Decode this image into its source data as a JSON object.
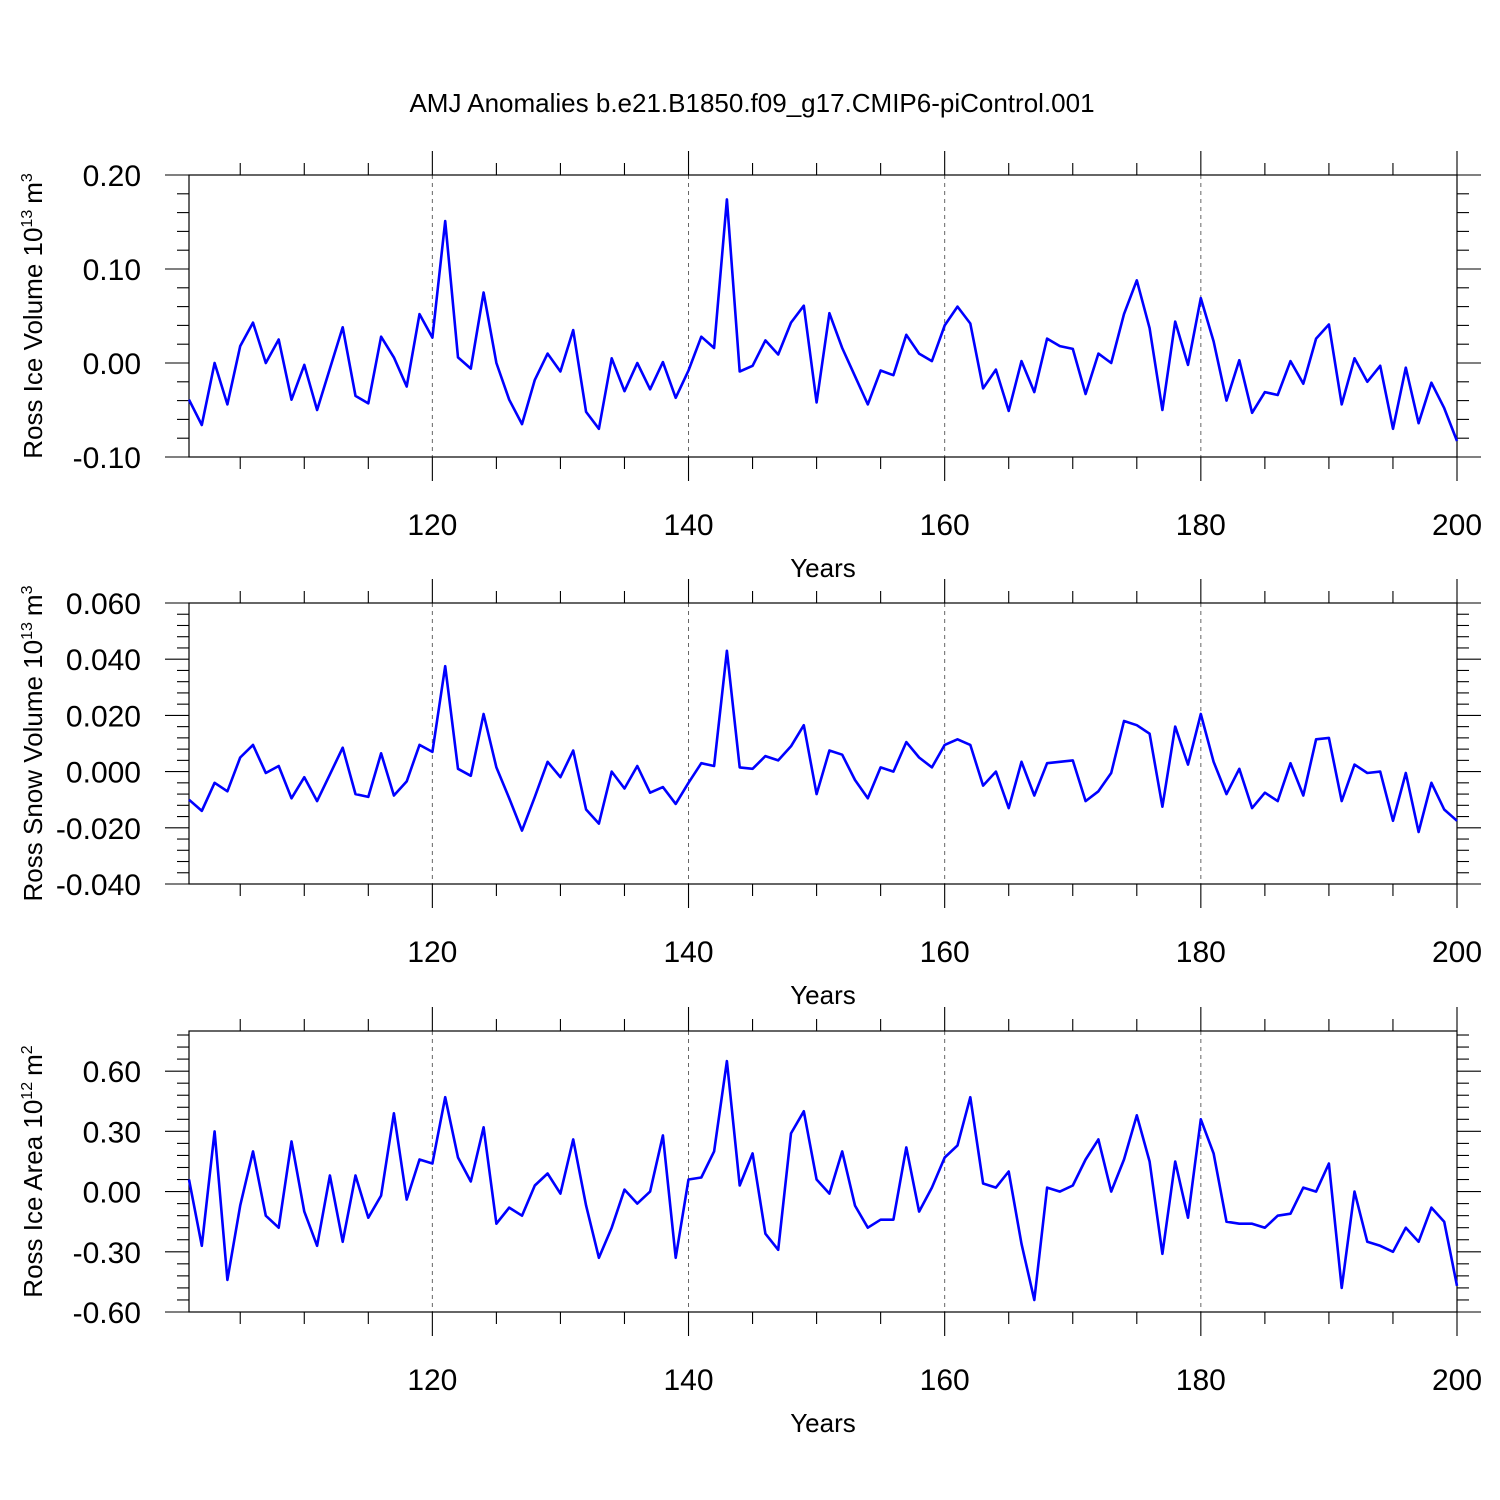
{
  "colors": {
    "series": "#0000ff"
  },
  "chart_data": [
    {
      "type": "line",
      "title": "AMJ Anomalies b.e21.B1850.f09_g17.CMIP6-piControl.001",
      "xlabel": "Years",
      "ylabel_main": "Ross Ice Volume 10",
      "ylabel_exp": "13",
      "ylabel_unit": "m",
      "ylabel_unit_exp": "3",
      "xlim": [
        101,
        200
      ],
      "ylim": [
        -0.1,
        0.2
      ],
      "xticks": [
        120,
        140,
        160,
        180,
        200
      ],
      "xtick_labels": [
        "120",
        "140",
        "160",
        "180",
        "200"
      ],
      "yticks": [
        -0.1,
        0.0,
        0.1,
        0.2
      ],
      "ytick_labels": [
        "-0.10",
        "0.00",
        "0.10",
        "0.20"
      ],
      "grid_x": [
        120,
        140,
        160,
        180
      ],
      "x_start": 101,
      "values": [
        -0.039,
        -0.066,
        0.0,
        -0.044,
        0.018,
        0.043,
        0.0,
        0.025,
        -0.039,
        -0.002,
        -0.05,
        -0.006,
        0.038,
        -0.035,
        -0.043,
        0.028,
        0.006,
        -0.025,
        0.052,
        0.027,
        0.151,
        0.006,
        -0.006,
        0.075,
        0.0,
        -0.039,
        -0.065,
        -0.018,
        0.01,
        -0.009,
        0.035,
        -0.052,
        -0.07,
        0.005,
        -0.03,
        0.0,
        -0.028,
        0.001,
        -0.037,
        -0.008,
        0.028,
        0.016,
        0.174,
        -0.009,
        -0.003,
        0.024,
        0.009,
        0.043,
        0.061,
        -0.042,
        0.053,
        0.016,
        -0.014,
        -0.044,
        -0.008,
        -0.013,
        0.03,
        0.01,
        0.002,
        0.04,
        0.06,
        0.042,
        -0.027,
        -0.007,
        -0.051,
        0.002,
        -0.031,
        0.026,
        0.018,
        0.015,
        -0.033,
        0.01,
        0.0,
        0.052,
        0.088,
        0.037,
        -0.05,
        0.044,
        -0.002,
        0.069,
        0.023,
        -0.04,
        0.003,
        -0.053,
        -0.031,
        -0.034,
        0.002,
        -0.022,
        0.026,
        0.041,
        -0.044,
        0.005,
        -0.02,
        -0.003,
        -0.07,
        -0.005,
        -0.064,
        -0.021,
        -0.048,
        -0.083
      ]
    },
    {
      "type": "line",
      "title": "",
      "xlabel": "Years",
      "ylabel_main": "Ross Snow Volume 10",
      "ylabel_exp": "13",
      "ylabel_unit": "m",
      "ylabel_unit_exp": "3",
      "xlim": [
        101,
        200
      ],
      "ylim": [
        -0.04,
        0.06
      ],
      "xticks": [
        120,
        140,
        160,
        180,
        200
      ],
      "xtick_labels": [
        "120",
        "140",
        "160",
        "180",
        "200"
      ],
      "yticks": [
        -0.04,
        -0.02,
        0.0,
        0.02,
        0.04,
        0.06
      ],
      "ytick_labels": [
        "-0.040",
        "-0.020",
        "0.000",
        "0.020",
        "0.040",
        "0.060"
      ],
      "grid_x": [
        120,
        140,
        160,
        180
      ],
      "x_start": 101,
      "values": [
        -0.01,
        -0.014,
        -0.004,
        -0.007,
        0.005,
        0.0095,
        -0.0005,
        0.002,
        -0.0095,
        -0.002,
        -0.0105,
        -0.001,
        0.0085,
        -0.008,
        -0.009,
        0.0065,
        -0.0085,
        -0.0035,
        0.0095,
        0.007,
        0.0375,
        0.001,
        -0.0015,
        0.0205,
        0.0015,
        -0.0095,
        -0.021,
        -0.009,
        0.0035,
        -0.002,
        0.0075,
        -0.0135,
        -0.0185,
        0.0,
        -0.006,
        0.002,
        -0.0075,
        -0.0055,
        -0.0115,
        -0.004,
        0.003,
        0.002,
        0.043,
        0.0015,
        0.001,
        0.0055,
        0.004,
        0.009,
        0.0165,
        -0.008,
        0.0075,
        0.006,
        -0.003,
        -0.0095,
        0.0015,
        0.0,
        0.0105,
        0.005,
        0.0015,
        0.0095,
        0.0115,
        0.0095,
        -0.005,
        0.0,
        -0.013,
        0.0035,
        -0.0085,
        0.003,
        0.0035,
        0.004,
        -0.0105,
        -0.007,
        -0.0005,
        0.018,
        0.0165,
        0.0135,
        -0.0125,
        0.016,
        0.0025,
        0.0205,
        0.0035,
        -0.008,
        0.001,
        -0.013,
        -0.0075,
        -0.0105,
        0.003,
        -0.0085,
        0.0115,
        0.012,
        -0.0105,
        0.0025,
        -0.0005,
        0.0,
        -0.0175,
        -0.0005,
        -0.0215,
        -0.004,
        -0.0135,
        -0.0175
      ]
    },
    {
      "type": "line",
      "title": "",
      "xlabel": "Years",
      "ylabel_main": "Ross Ice Area 10",
      "ylabel_exp": "12",
      "ylabel_unit": "m",
      "ylabel_unit_exp": "2",
      "xlim": [
        101,
        200
      ],
      "ylim": [
        -0.6,
        0.8
      ],
      "xticks": [
        120,
        140,
        160,
        180,
        200
      ],
      "xtick_labels": [
        "120",
        "140",
        "160",
        "180",
        "200"
      ],
      "yticks": [
        -0.6,
        -0.3,
        0.0,
        0.3,
        0.6
      ],
      "ytick_labels": [
        "-0.60",
        "-0.30",
        "0.00",
        "0.30",
        "0.60"
      ],
      "grid_x": [
        120,
        140,
        160,
        180
      ],
      "x_start": 101,
      "values": [
        0.06,
        -0.27,
        0.3,
        -0.44,
        -0.07,
        0.2,
        -0.12,
        -0.18,
        0.25,
        -0.1,
        -0.27,
        0.08,
        -0.25,
        0.08,
        -0.13,
        -0.02,
        0.39,
        -0.04,
        0.16,
        0.14,
        0.47,
        0.17,
        0.05,
        0.32,
        -0.16,
        -0.08,
        -0.12,
        0.03,
        0.09,
        -0.01,
        0.26,
        -0.07,
        -0.33,
        -0.18,
        0.01,
        -0.06,
        0.0,
        0.28,
        -0.33,
        0.06,
        0.07,
        0.2,
        0.65,
        0.03,
        0.19,
        -0.21,
        -0.29,
        0.29,
        0.4,
        0.06,
        -0.01,
        0.2,
        -0.07,
        -0.18,
        -0.14,
        -0.14,
        0.22,
        -0.1,
        0.02,
        0.17,
        0.23,
        0.47,
        0.04,
        0.02,
        0.1,
        -0.26,
        -0.54,
        0.02,
        0.0,
        0.03,
        0.16,
        0.26,
        0.0,
        0.16,
        0.38,
        0.15,
        -0.31,
        0.15,
        -0.13,
        0.36,
        0.19,
        -0.15,
        -0.16,
        -0.16,
        -0.18,
        -0.12,
        -0.11,
        0.02,
        0.0,
        0.14,
        -0.48,
        0.0,
        -0.25,
        -0.27,
        -0.3,
        -0.18,
        -0.25,
        -0.08,
        -0.15,
        -0.47
      ]
    }
  ]
}
